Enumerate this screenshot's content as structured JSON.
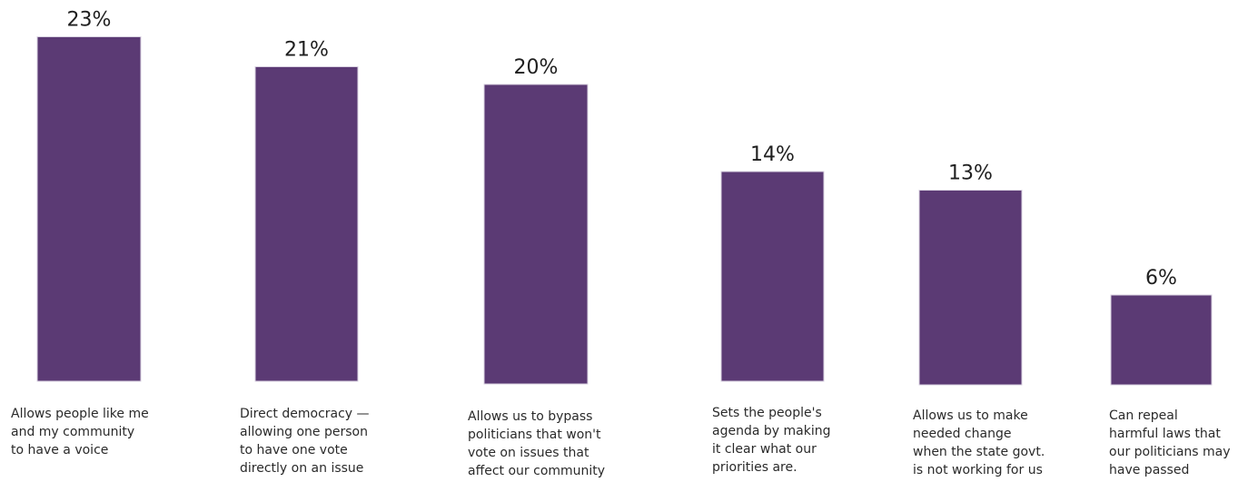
{
  "chart_data": {
    "type": "bar",
    "categories": [
      [
        "Allows people like me",
        "and my community",
        "to have a voice"
      ],
      [
        "Direct democracy —",
        "allowing one person",
        "to have one vote",
        "directly on an issue"
      ],
      [
        "Allows us to bypass",
        "politicians that won't",
        "vote on issues that",
        "affect our community"
      ],
      [
        "Sets the people's",
        "agenda by making",
        "it clear what our",
        "priorities are."
      ],
      [
        "Allows us to make",
        "needed change",
        "when the state govt.",
        "is not working for us"
      ],
      [
        "Can repeal",
        "harmful laws that",
        "our politicians may",
        "have passed"
      ]
    ],
    "values": [
      23,
      21,
      20,
      14,
      13,
      6
    ],
    "value_labels": [
      "23%",
      "21%",
      "20%",
      "14%",
      "13%",
      "6%"
    ],
    "bar_color": "#5b3a74",
    "grid": false
  }
}
